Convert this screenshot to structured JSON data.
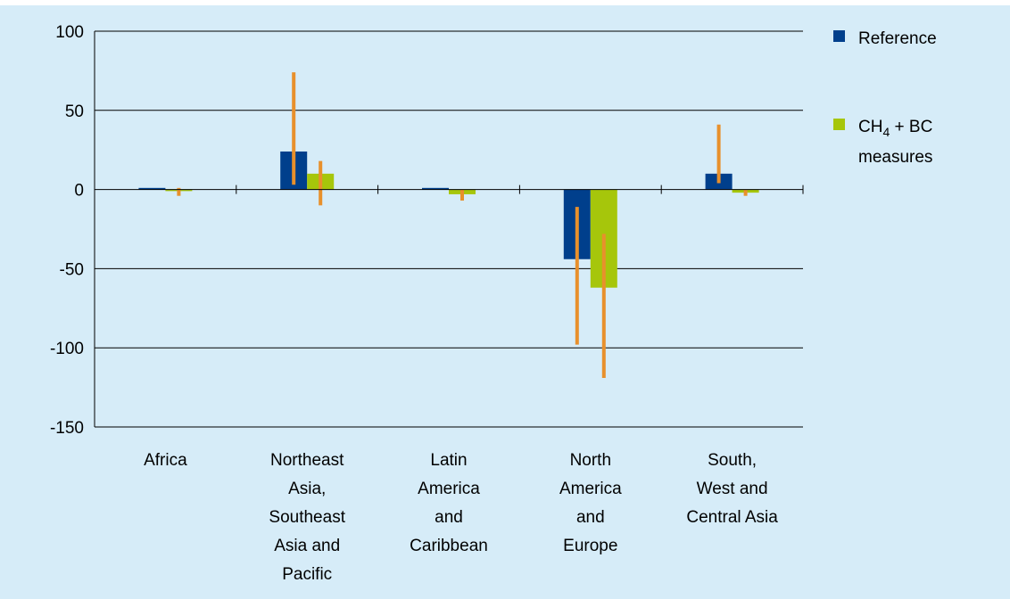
{
  "chart_data": {
    "type": "bar",
    "ylim": [
      -150,
      100
    ],
    "yticks": [
      100,
      50,
      0,
      -50,
      -100,
      -150
    ],
    "grid": true,
    "legend_position": "right",
    "categories": [
      [
        "Africa"
      ],
      [
        "Northeast",
        "Asia,",
        "Southeast",
        "Asia and",
        "Pacific"
      ],
      [
        "Latin",
        "America",
        "and",
        "Caribbean"
      ],
      [
        "North",
        "America",
        "and",
        "Europe"
      ],
      [
        "South,",
        "West and",
        "Central Asia"
      ]
    ],
    "series": [
      {
        "name": "Reference",
        "color": "#003f8c",
        "values": [
          1,
          24,
          1,
          -44,
          10
        ],
        "error_low": [
          1,
          3,
          1,
          -98,
          4
        ],
        "error_high": [
          1,
          74,
          1,
          -11,
          41
        ]
      },
      {
        "name": "CH4 + BC measures",
        "legend_label_main": "CH",
        "legend_label_sub": "4",
        "legend_label_rest": " + BC",
        "legend_label_line2": "measures",
        "color": "#a6c60b",
        "values": [
          -1,
          10,
          -3,
          -62,
          -2
        ],
        "error_low": [
          -4,
          -10,
          -7,
          -119,
          -4
        ],
        "error_high": [
          1,
          18,
          0,
          -28,
          0
        ]
      }
    ],
    "error_bar_color": "#e8902c"
  }
}
